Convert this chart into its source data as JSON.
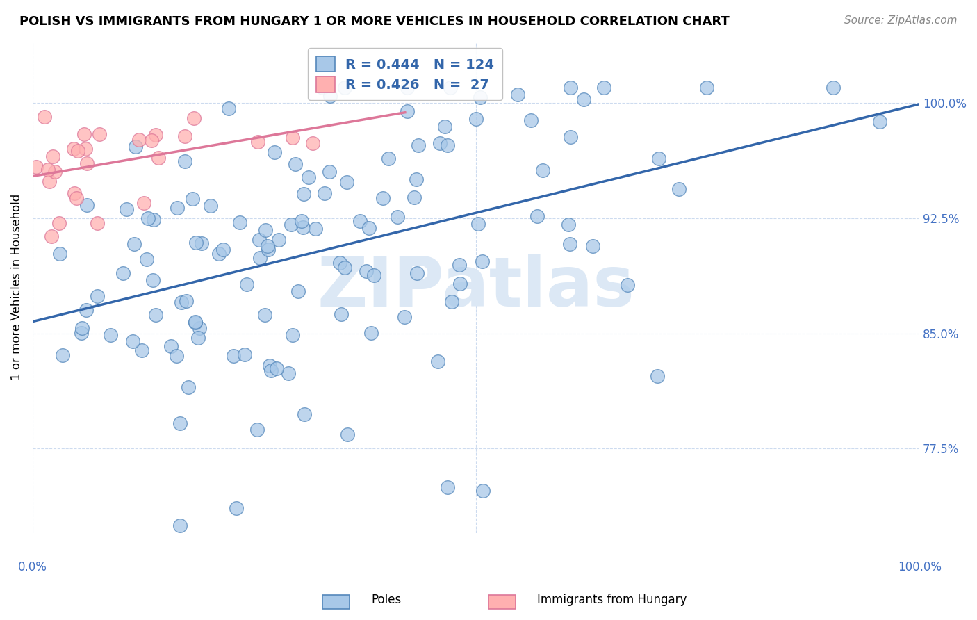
{
  "title": "POLISH VS IMMIGRANTS FROM HUNGARY 1 OR MORE VEHICLES IN HOUSEHOLD CORRELATION CHART",
  "source": "Source: ZipAtlas.com",
  "ylabel": "1 or more Vehicles in Household",
  "legend_blue_R": 0.444,
  "legend_blue_N": 124,
  "legend_pink_R": 0.426,
  "legend_pink_N": 27,
  "blue_color": "#a8c8e8",
  "blue_edge_color": "#5588bb",
  "blue_line_color": "#3366aa",
  "pink_color": "#ffb0b0",
  "pink_edge_color": "#dd7799",
  "pink_line_color": "#dd7799",
  "watermark_color": "#dce8f5",
  "ytick_color": "#4472c4",
  "ytick_labels": [
    "77.5%",
    "85.0%",
    "92.5%",
    "100.0%"
  ],
  "ytick_values": [
    0.775,
    0.85,
    0.925,
    1.0
  ],
  "xlim": [
    0.0,
    1.0
  ],
  "ylim": [
    0.72,
    1.04
  ]
}
